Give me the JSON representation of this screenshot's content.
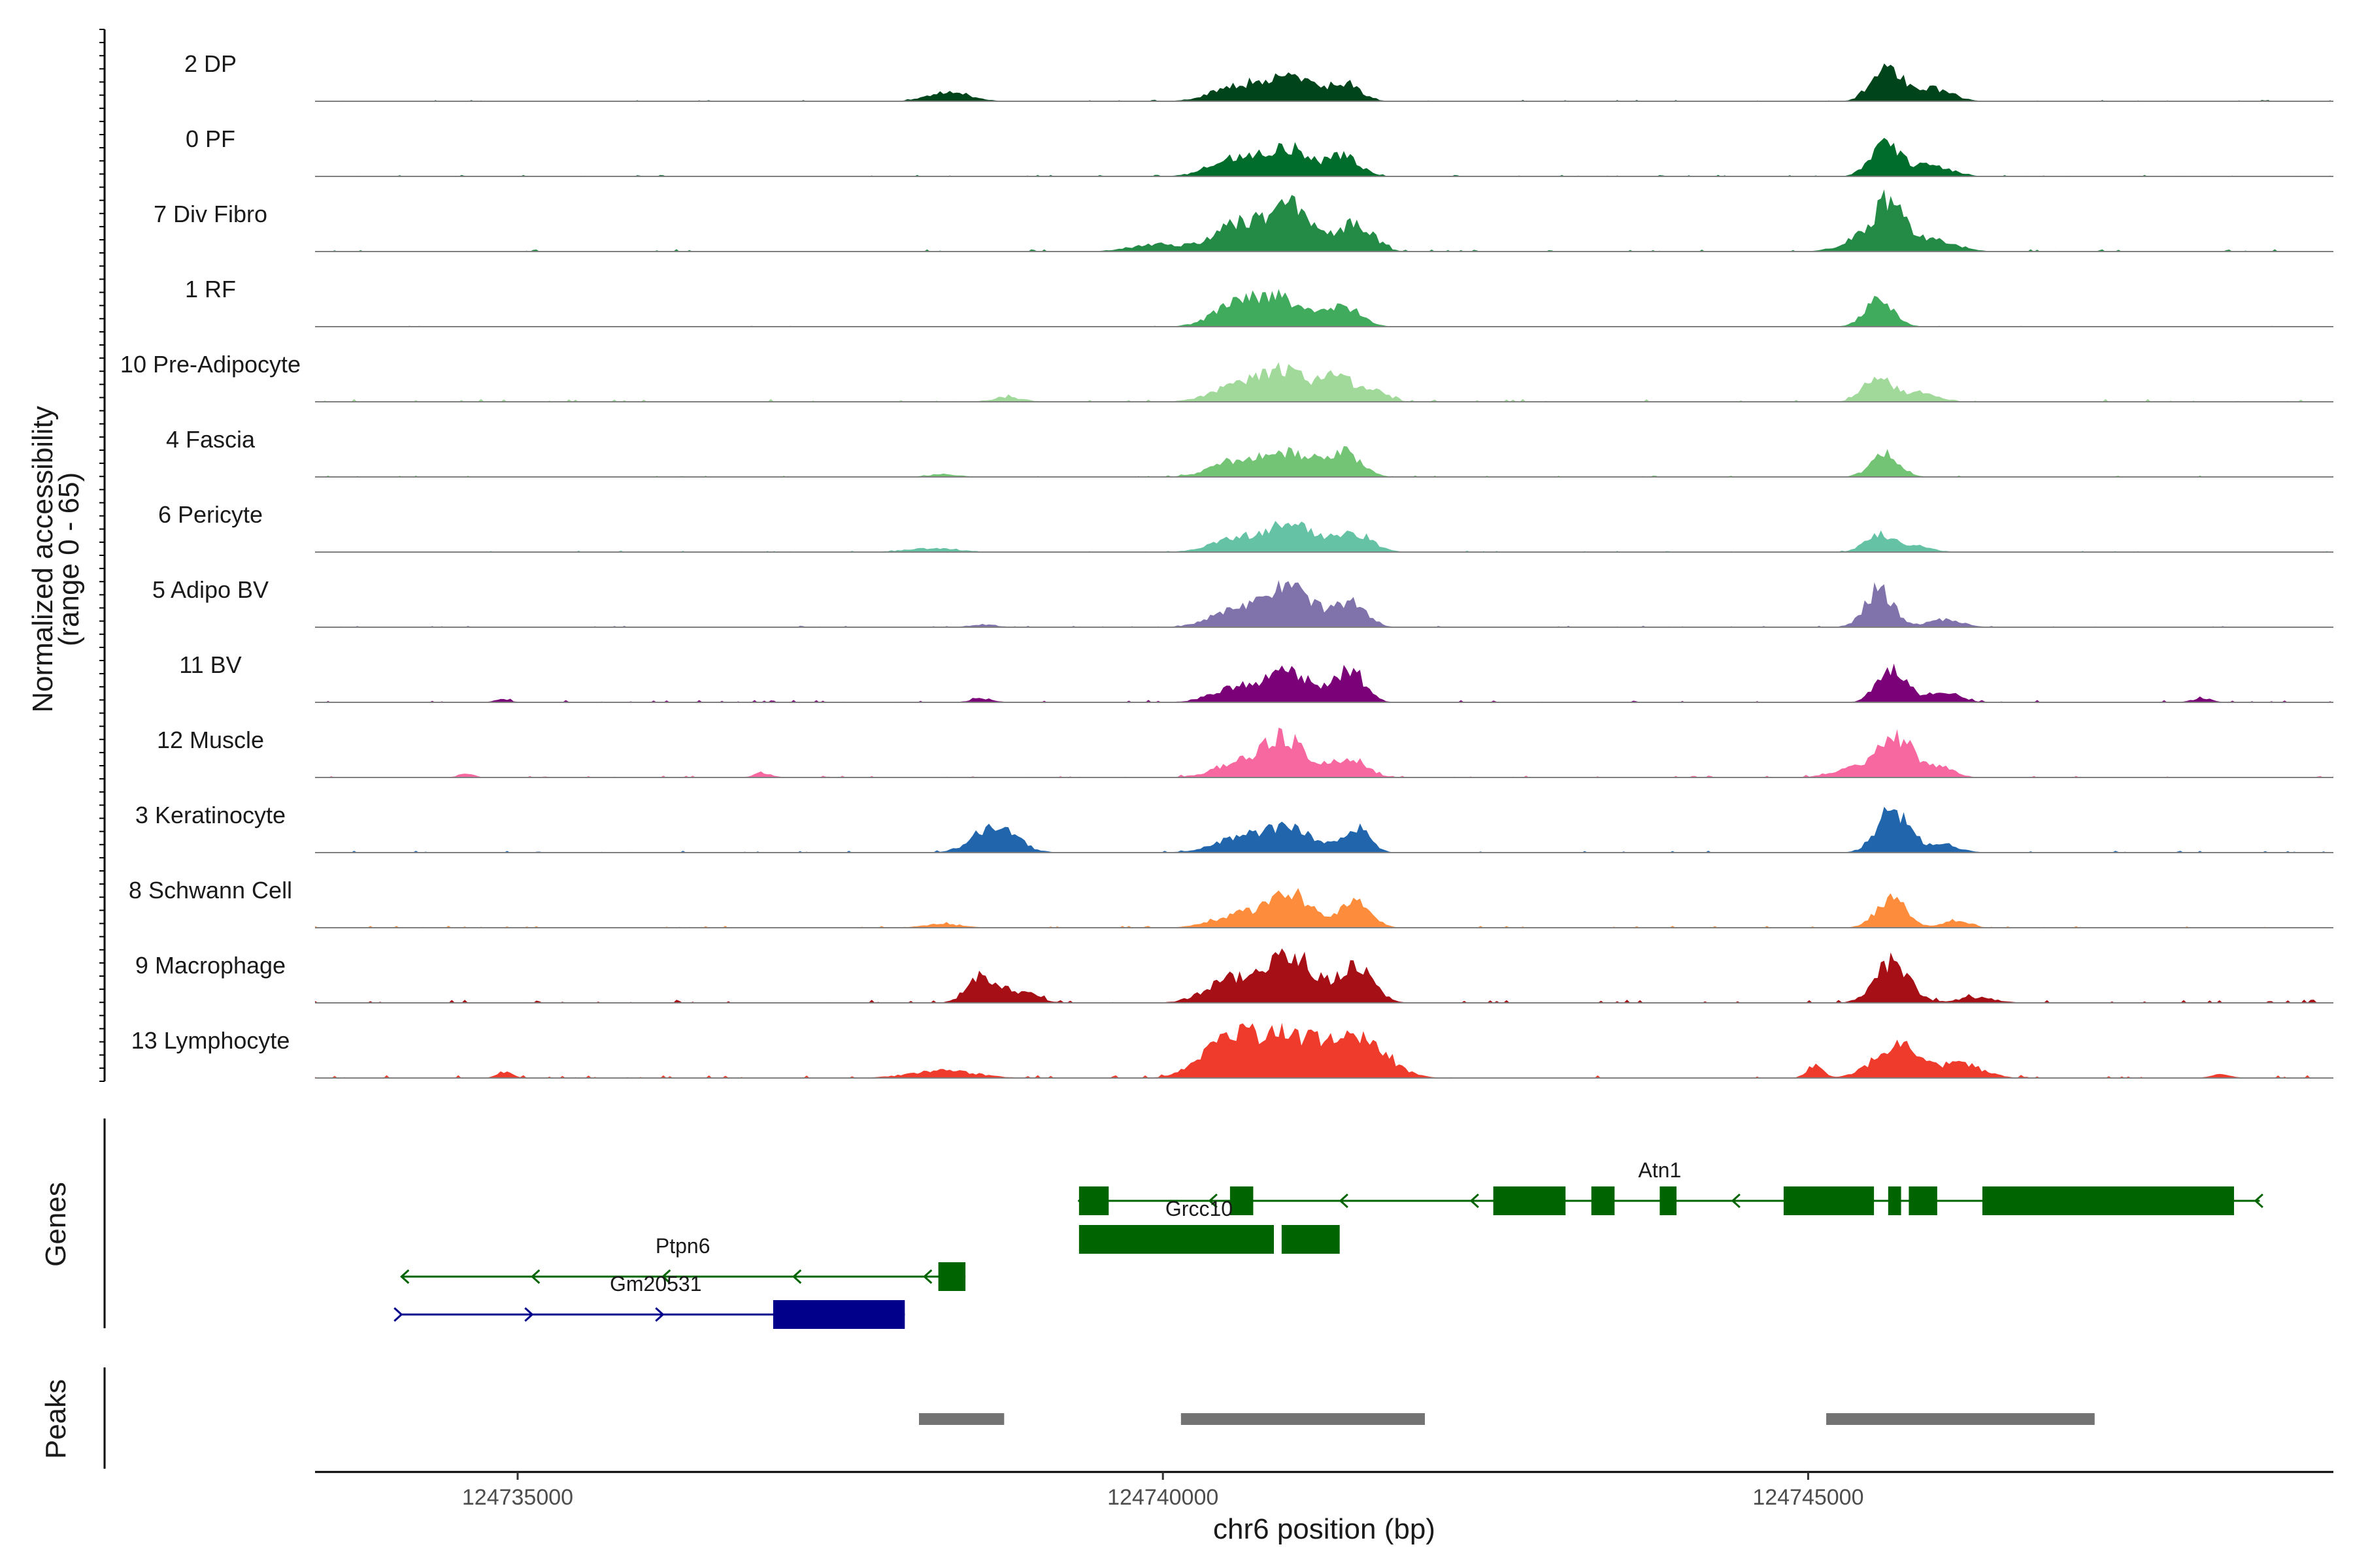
{
  "chart_data": {
    "type": "area",
    "title": "",
    "xlabel": "chr6 position (bp)",
    "ylabel": "Normalized accessibility\n(range 0 - 65)",
    "ylabel_line1": "Normalized accessibility",
    "ylabel_line2": "(range 0 - 65)",
    "y_range": [
      0,
      65
    ],
    "xlim": [
      124733430,
      124749070
    ],
    "x_ticks": [
      124735000,
      124740000,
      124745000
    ],
    "x_tick_labels": [
      "124735000",
      "124740000",
      "124745000"
    ],
    "tracks": [
      {
        "name": "2 DP",
        "color": "#00441b",
        "peaks": [
          [
            124738350,
            10,
            160
          ],
          [
            124740600,
            18,
            200
          ],
          [
            124741000,
            28,
            150
          ],
          [
            124741400,
            20,
            120
          ],
          [
            124745600,
            40,
            110
          ],
          [
            124745950,
            14,
            150
          ]
        ],
        "noise": 1.5
      },
      {
        "name": "0 PF",
        "color": "#006d2c",
        "peaks": [
          [
            124740600,
            22,
            200
          ],
          [
            124741000,
            28,
            150
          ],
          [
            124741400,
            22,
            120
          ],
          [
            124745600,
            38,
            110
          ],
          [
            124745950,
            12,
            150
          ]
        ],
        "noise": 1.5
      },
      {
        "name": "7 Div Fibro",
        "color": "#238b45",
        "peaks": [
          [
            124739950,
            8,
            200
          ],
          [
            124740600,
            30,
            200
          ],
          [
            124741000,
            45,
            160
          ],
          [
            124741500,
            30,
            130
          ],
          [
            124745500,
            20,
            180
          ],
          [
            124745650,
            42,
            110
          ],
          [
            124746000,
            12,
            160
          ]
        ],
        "noise": 2.5
      },
      {
        "name": "1 RF",
        "color": "#41ab5d",
        "peaks": [
          [
            124740550,
            20,
            170
          ],
          [
            124740900,
            30,
            200
          ],
          [
            124741400,
            22,
            130
          ],
          [
            124745550,
            28,
            110
          ]
        ],
        "noise": 1
      },
      {
        "name": "10 Pre-Adipocyte",
        "color": "#a1d99b",
        "peaks": [
          [
            124738800,
            5,
            120
          ],
          [
            124740600,
            20,
            200
          ],
          [
            124740950,
            30,
            160
          ],
          [
            124741350,
            28,
            130
          ],
          [
            124741650,
            10,
            100
          ],
          [
            124745550,
            28,
            110
          ],
          [
            124745900,
            10,
            120
          ]
        ],
        "noise": 3
      },
      {
        "name": "4 Fascia",
        "color": "#74c476",
        "peaks": [
          [
            124738300,
            3,
            120
          ],
          [
            124740600,
            18,
            200
          ],
          [
            124741000,
            24,
            170
          ],
          [
            124741400,
            26,
            130
          ],
          [
            124745600,
            26,
            110
          ]
        ],
        "noise": 1.5
      },
      {
        "name": "6 Pericyte",
        "color": "#66c2a4",
        "peaks": [
          [
            124738200,
            4,
            200
          ],
          [
            124740600,
            16,
            200
          ],
          [
            124741000,
            30,
            160
          ],
          [
            124741450,
            22,
            150
          ],
          [
            124745550,
            20,
            110
          ],
          [
            124745850,
            6,
            120
          ]
        ],
        "noise": 1.5
      },
      {
        "name": "5 Adipo BV",
        "color": "#8073ac",
        "peaks": [
          [
            124738600,
            3,
            100
          ],
          [
            124740600,
            22,
            200
          ],
          [
            124741000,
            40,
            170
          ],
          [
            124741450,
            26,
            120
          ],
          [
            124745550,
            40,
            110
          ],
          [
            124746050,
            8,
            140
          ]
        ],
        "noise": 1.5
      },
      {
        "name": "11 BV",
        "color": "#7a0177",
        "peaks": [
          [
            124734880,
            4,
            60
          ],
          [
            124738600,
            4,
            90
          ],
          [
            124740600,
            16,
            200
          ],
          [
            124741000,
            30,
            180
          ],
          [
            124741450,
            34,
            110
          ],
          [
            124745650,
            38,
            110
          ],
          [
            124746050,
            10,
            120
          ],
          [
            124748050,
            4,
            80
          ]
        ],
        "noise": 2.5
      },
      {
        "name": "12 Muscle",
        "color": "#f768a1",
        "peaks": [
          [
            124734600,
            4,
            60
          ],
          [
            124736900,
            5,
            70
          ],
          [
            124740600,
            14,
            200
          ],
          [
            124740950,
            40,
            170
          ],
          [
            124741450,
            20,
            130
          ],
          [
            124745450,
            12,
            200
          ],
          [
            124745700,
            38,
            130
          ],
          [
            124746050,
            10,
            100
          ]
        ],
        "noise": 2
      },
      {
        "name": "3 Keratinocyte",
        "color": "#2166ac",
        "peaks": [
          [
            124738700,
            30,
            160
          ],
          [
            124740600,
            16,
            200
          ],
          [
            124741000,
            26,
            180
          ],
          [
            124741500,
            26,
            100
          ],
          [
            124745650,
            45,
            120
          ],
          [
            124746000,
            8,
            150
          ]
        ],
        "noise": 2
      },
      {
        "name": "8 Schwann Cell",
        "color": "#fd8d3c",
        "peaks": [
          [
            124738300,
            4,
            150
          ],
          [
            124740600,
            14,
            200
          ],
          [
            124741000,
            35,
            170
          ],
          [
            124741500,
            30,
            110
          ],
          [
            124745650,
            30,
            120
          ],
          [
            124746150,
            8,
            100
          ]
        ],
        "noise": 2
      },
      {
        "name": "9 Macrophage",
        "color": "#a50f15",
        "peaks": [
          [
            124738600,
            30,
            110
          ],
          [
            124738900,
            12,
            130
          ],
          [
            124740550,
            26,
            200
          ],
          [
            124741000,
            50,
            180
          ],
          [
            124741500,
            40,
            130
          ],
          [
            124745650,
            45,
            130
          ],
          [
            124746300,
            6,
            150
          ]
        ],
        "noise": 3.5
      },
      {
        "name": "13 Lymphocyte",
        "color": "#ef3b2c",
        "peaks": [
          [
            124734900,
            6,
            60
          ],
          [
            124738300,
            8,
            250
          ],
          [
            124740500,
            40,
            200
          ],
          [
            124741000,
            46,
            260
          ],
          [
            124741550,
            36,
            200
          ],
          [
            124745050,
            14,
            60
          ],
          [
            124745700,
            36,
            180
          ],
          [
            124746200,
            14,
            160
          ],
          [
            124748200,
            4,
            80
          ]
        ],
        "noise": 3
      }
    ],
    "genes_label": "Genes",
    "genes": [
      {
        "name": "Atn1",
        "color": "#006400",
        "strand": "-",
        "start": 124739350,
        "end": 124748500,
        "label_x": 124743850,
        "row": 0,
        "exons": [
          [
            124739350,
            124739580
          ],
          [
            124740520,
            124740700
          ],
          [
            124742560,
            124743120
          ],
          [
            124743320,
            124743500
          ],
          [
            124743850,
            124743980
          ],
          [
            124744810,
            124745510
          ],
          [
            124745620,
            124745720
          ],
          [
            124745780,
            124746000
          ],
          [
            124746350,
            124748300
          ]
        ]
      },
      {
        "name": "Grcc10",
        "color": "#006400",
        "strand": "",
        "start": 124739350,
        "end": 124741370,
        "label_x": 124740280,
        "row": 1,
        "exons": [
          [
            124739350,
            124740860
          ],
          [
            124740920,
            124741370
          ]
        ]
      },
      {
        "name": "Ptpn6",
        "color": "#006400",
        "strand": "-",
        "start": 124734100,
        "end": 124738470,
        "label_x": 124736280,
        "row": 2,
        "exons": [
          [
            124738260,
            124738470
          ]
        ]
      },
      {
        "name": "Gm20531",
        "color": "#00008b",
        "strand": "+",
        "start": 124734100,
        "end": 124738000,
        "label_x": 124736070,
        "row": 3,
        "exons": [
          [
            124736980,
            124738000
          ]
        ]
      }
    ],
    "peaks_label": "Peaks",
    "peak_regions": [
      [
        124738110,
        124738770
      ],
      [
        124740140,
        124742030
      ],
      [
        124745140,
        124747220
      ]
    ],
    "peak_color": "#737373"
  }
}
